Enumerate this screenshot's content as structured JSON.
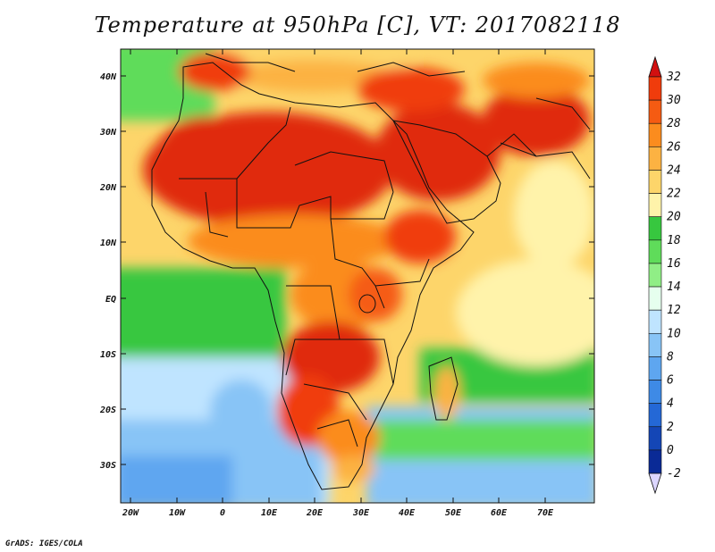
{
  "title": "Temperature at 950hPa [C], VT: 2017082118",
  "footer": "GrADS: IGES/COLA",
  "map": {
    "region": "Africa and Middle East",
    "lon_range": [
      -23,
      80
    ],
    "lat_range": [
      -37,
      45
    ],
    "lat_ticks": [
      "40N",
      "30N",
      "20N",
      "10N",
      "EQ",
      "10S",
      "20S",
      "30S"
    ],
    "lon_ticks": [
      "20W",
      "10W",
      "0",
      "10E",
      "20E",
      "30E",
      "40E",
      "50E",
      "60E",
      "70E"
    ]
  },
  "colorbar": {
    "labels": [
      "32",
      "30",
      "28",
      "26",
      "24",
      "22",
      "20",
      "18",
      "16",
      "14",
      "12",
      "10",
      "8",
      "6",
      "4",
      "2",
      "0",
      "-2"
    ],
    "colors": [
      "#ff5a10",
      "#f03c0c",
      "#f55b12",
      "#fb8c1e",
      "#fcb242",
      "#fdd56a",
      "#fff3aa",
      "#37c73f",
      "#5fdc5a",
      "#90ee86",
      "#e6ffee",
      "#bfe4ff",
      "#88c4f6",
      "#5ea6f0",
      "#3e8ae6",
      "#2468d6",
      "#1446b6",
      "#0a2a96",
      "#081a6a"
    ],
    "top_arrow_color": "#d21010",
    "bottom_arrow_color": "#dcd6ff"
  }
}
